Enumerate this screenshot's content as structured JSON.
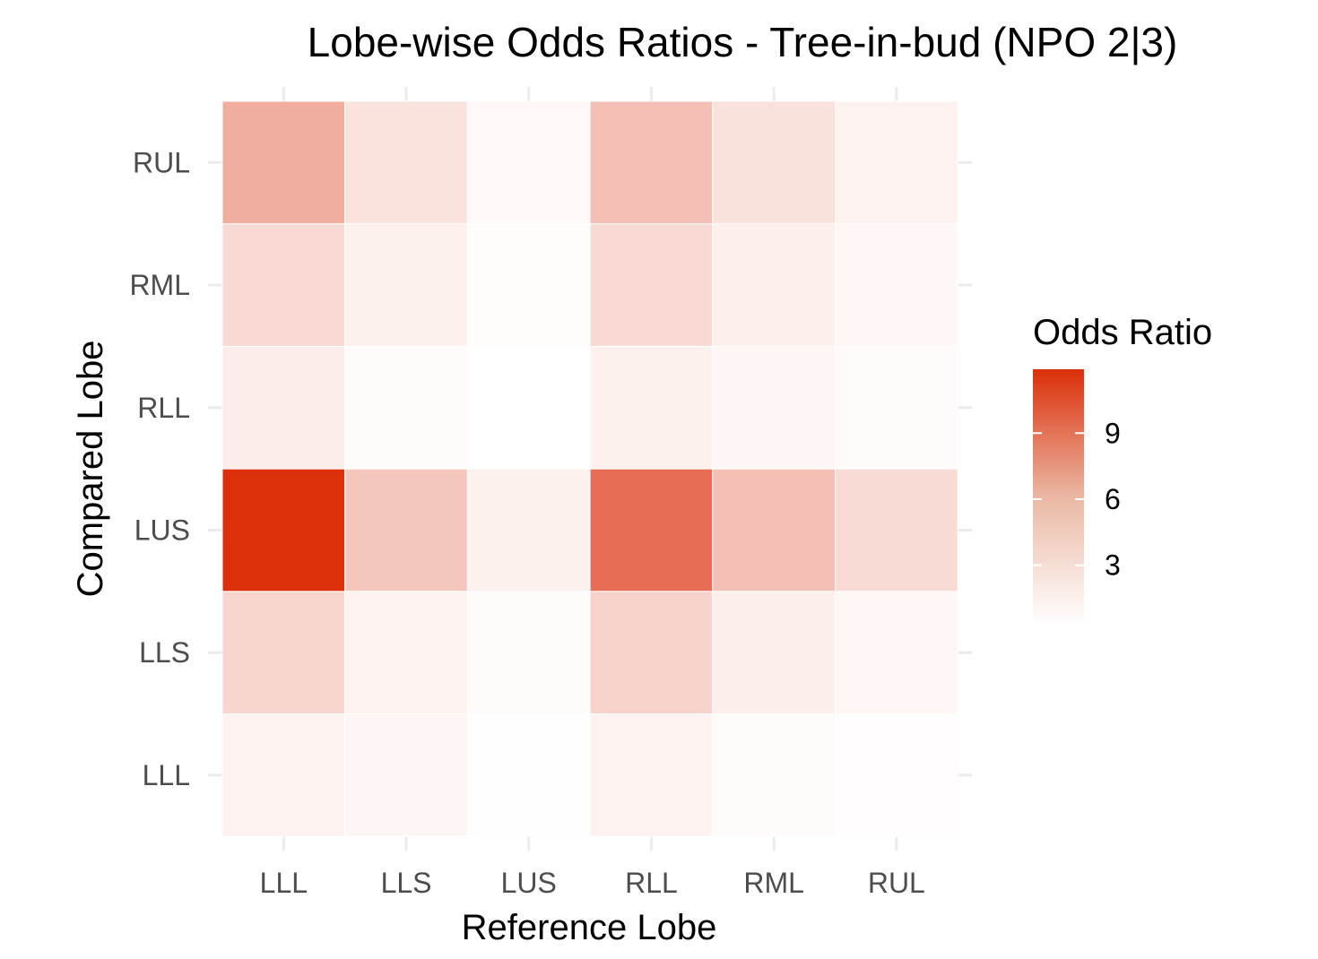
{
  "chart_data": {
    "type": "heatmap",
    "title": "Lobe-wise Odds Ratios - Tree-in-bud (NPO 2|3)",
    "xlabel": "Reference Lobe",
    "ylabel": "Compared Lobe",
    "x_categories": [
      "LLL",
      "LLS",
      "LUS",
      "RLL",
      "RML",
      "RUL"
    ],
    "y_categories": [
      "LLL",
      "LLS",
      "LUS",
      "RLL",
      "RML",
      "RUL"
    ],
    "values": [
      [
        1.0,
        0.8,
        0.35,
        1.0,
        0.55,
        0.4
      ],
      [
        2.6,
        1.0,
        0.55,
        2.8,
        1.25,
        0.75
      ],
      [
        11.9,
        3.5,
        1.1,
        8.4,
        3.85,
        2.3
      ],
      [
        1.3,
        0.55,
        0.3,
        1.1,
        0.8,
        0.55
      ],
      [
        2.4,
        1.1,
        0.45,
        2.4,
        1.2,
        0.75
      ],
      [
        4.8,
        1.9,
        0.65,
        3.8,
        2.0,
        1.0
      ]
    ],
    "legend": {
      "title": "Odds Ratio",
      "ticks": [
        3,
        6,
        9
      ],
      "range": [
        0.3,
        11.9
      ],
      "low_color": "#ffffff",
      "high_color": "#dc2f0a",
      "position": "right"
    },
    "grid": true
  }
}
